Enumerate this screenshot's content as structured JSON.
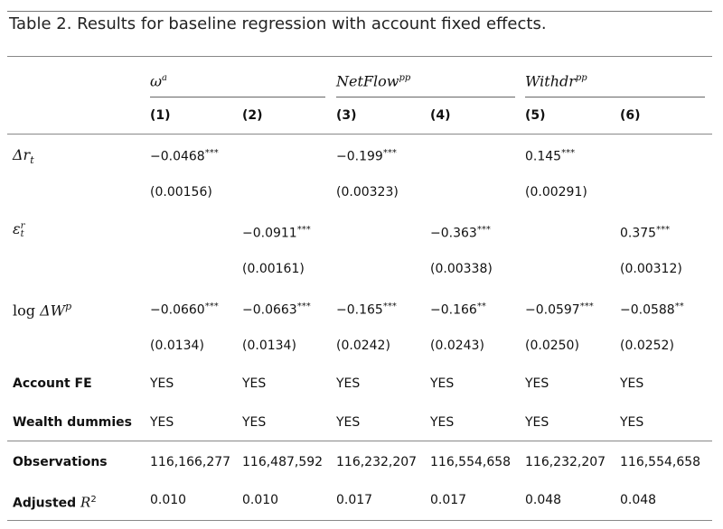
{
  "caption": "Table 2. Results for baseline regression with account fixed effects.",
  "groups": [
    {
      "base": "ω",
      "sup": "a"
    },
    {
      "base": "NetFlow",
      "sup": "pp"
    },
    {
      "base": "Withdr",
      "sup": "pp"
    }
  ],
  "columns": [
    "(1)",
    "(2)",
    "(3)",
    "(4)",
    "(5)",
    "(6)"
  ],
  "rows": {
    "dr": {
      "label_base": "Δr",
      "label_sub": "t",
      "coef": [
        "−0.0468",
        "",
        "−0.199",
        "",
        "0.145",
        ""
      ],
      "stars": [
        "***",
        "",
        "***",
        "",
        "***",
        ""
      ],
      "se": [
        "(0.00156)",
        "",
        "(0.00323)",
        "",
        "(0.00291)",
        ""
      ]
    },
    "eps": {
      "label_base": "ε",
      "label_sup": "r",
      "label_sub": "t",
      "coef": [
        "",
        "−0.0911",
        "",
        "−0.363",
        "",
        "0.375"
      ],
      "stars": [
        "",
        "***",
        "",
        "***",
        "",
        "***"
      ],
      "se": [
        "",
        "(0.00161)",
        "",
        "(0.00338)",
        "",
        "(0.00312)"
      ]
    },
    "logdw": {
      "label_prefix": "log",
      "label_base": "ΔW",
      "label_sup": "p",
      "coef": [
        "−0.0660",
        "−0.0663",
        "−0.165",
        "−0.166",
        "−0.0597",
        "−0.0588"
      ],
      "stars": [
        "***",
        "***",
        "***",
        "**",
        "***",
        "**"
      ],
      "se": [
        "(0.0134)",
        "(0.0134)",
        "(0.0242)",
        "(0.0243)",
        "(0.0250)",
        "(0.0252)"
      ]
    },
    "account_fe": {
      "label": "Account FE",
      "values": [
        "YES",
        "YES",
        "YES",
        "YES",
        "YES",
        "YES"
      ]
    },
    "wealth": {
      "label": "Wealth dummies",
      "values": [
        "YES",
        "YES",
        "YES",
        "YES",
        "YES",
        "YES"
      ]
    },
    "obs": {
      "label": "Observations",
      "values": [
        "116,166,277",
        "116,487,592",
        "116,232,207",
        "116,554,658",
        "116,232,207",
        "116,554,658"
      ]
    },
    "adjr2": {
      "label": "Adjusted",
      "label_math": "R",
      "label_sup": "2",
      "values": [
        "0.010",
        "0.010",
        "0.017",
        "0.017",
        "0.048",
        "0.048"
      ]
    }
  }
}
